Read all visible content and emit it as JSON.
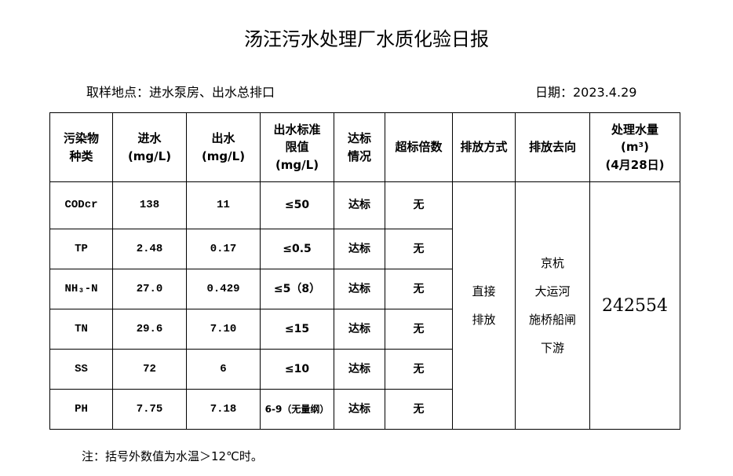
{
  "title": "汤汪污水处理厂水质化验日报",
  "location": "取样地点：进水泵房、出水总排口",
  "date": "日期：2023.4.29",
  "headers": {
    "pollutant": [
      "污染物",
      "种类"
    ],
    "inflow": [
      "进水",
      "(mg/L)"
    ],
    "outflow": [
      "出水",
      "(mg/L)"
    ],
    "limit": [
      "出水标准",
      "限值",
      "(mg/L)"
    ],
    "status": [
      "达标",
      "情况"
    ],
    "exceed": "超标倍数",
    "method": "排放方式",
    "destination": "排放去向",
    "volume": [
      "处理水量",
      "(m³)",
      "(4月28日)"
    ]
  },
  "rows": [
    {
      "name": "CODcr",
      "in": "138",
      "out": "11",
      "limit": "≤50",
      "status": "达标",
      "exceed": "无"
    },
    {
      "name": "TP",
      "in": "2.48",
      "out": "0.17",
      "limit": "≤0.5",
      "status": "达标",
      "exceed": "无"
    },
    {
      "name": "NH₃-N",
      "in": "27.0",
      "out": "0.429",
      "limit": "≤5（8）",
      "status": "达标",
      "exceed": "无"
    },
    {
      "name": "TN",
      "in": "29.6",
      "out": "7.10",
      "limit": "≤15",
      "status": "达标",
      "exceed": "无"
    },
    {
      "name": "SS",
      "in": "72",
      "out": "6",
      "limit": "≤10",
      "status": "达标",
      "exceed": "无"
    },
    {
      "name": "PH",
      "in": "7.75",
      "out": "7.18",
      "limit": "6-9（无量纲）",
      "status": "达标",
      "exceed": "无"
    }
  ],
  "method": [
    "直接",
    "排放"
  ],
  "destination": [
    "京杭",
    "大运河",
    "施桥船闸",
    "下游"
  ],
  "volume": "242554",
  "note": "注：括号外数值为水温＞12℃时。"
}
